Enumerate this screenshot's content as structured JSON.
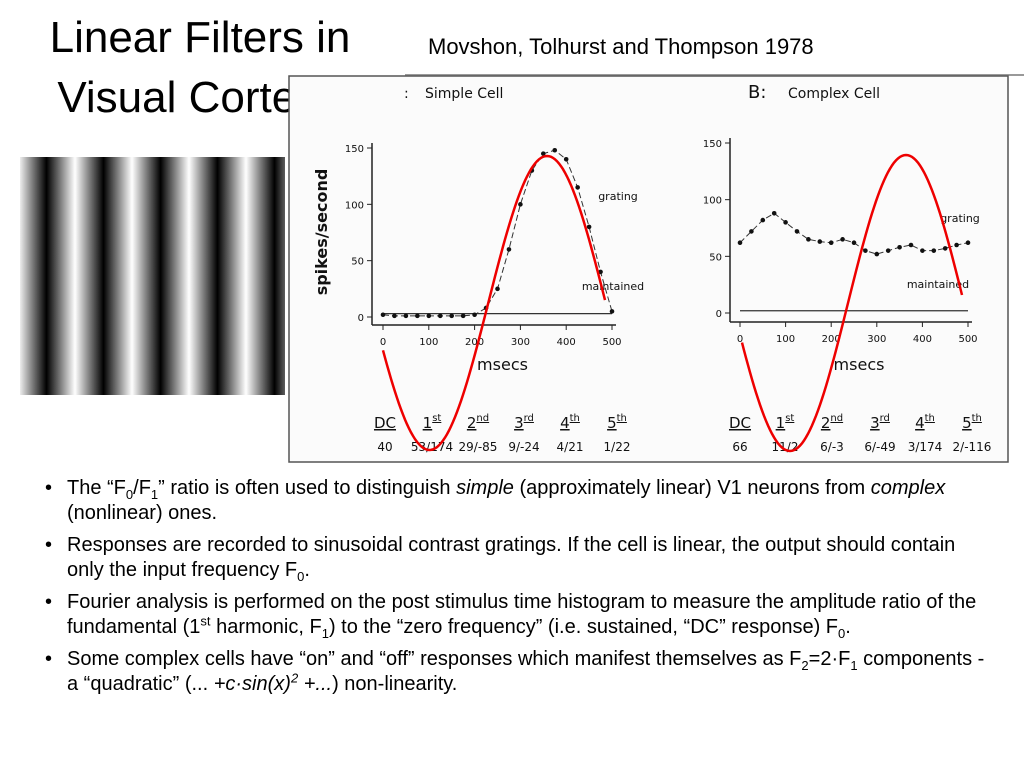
{
  "title": [
    "Linear Filters in",
    "Visual Cortex?"
  ],
  "citation": "Movshon, Tolhurst and Thompson 1978",
  "figure": {
    "y_axis_label": "spikes/second",
    "panels": [
      {
        "letter": null,
        "title": "Simple  Cell",
        "x_axis_label": "msecs",
        "grating_note": "grating",
        "maintained_note": "maintained",
        "xlim": [
          0,
          500
        ],
        "ylim": [
          0,
          150
        ],
        "xticks": [
          0,
          100,
          200,
          300,
          400,
          500
        ],
        "yticks": [
          0,
          50,
          100,
          150
        ],
        "time": [
          0,
          25,
          50,
          75,
          100,
          125,
          150,
          175,
          200,
          225,
          250,
          275,
          300,
          325,
          350,
          375,
          400,
          425,
          450,
          475,
          500
        ],
        "response": [
          2,
          1,
          1,
          1,
          1,
          1,
          1,
          1,
          2,
          8,
          25,
          60,
          100,
          130,
          145,
          148,
          140,
          115,
          80,
          40,
          5
        ],
        "maintained": 3,
        "harmonics": [
          {
            "label": "DC",
            "sup": null,
            "ratio": "40"
          },
          {
            "label": "1",
            "sup": "st",
            "ratio": "53/174"
          },
          {
            "label": "2",
            "sup": "nd",
            "ratio": "29/-85"
          },
          {
            "label": "3",
            "sup": "rd",
            "ratio": "9/-24"
          },
          {
            "label": "4",
            "sup": "th",
            "ratio": "4/21"
          },
          {
            "label": "5",
            "sup": "th",
            "ratio": "1/22"
          }
        ]
      },
      {
        "letter": "B:",
        "title": "Complex  Cell",
        "x_axis_label": "msecs",
        "grating_note": "grating",
        "maintained_note": "maintained",
        "xlim": [
          0,
          500
        ],
        "ylim": [
          0,
          150
        ],
        "xticks": [
          0,
          100,
          200,
          300,
          400,
          500
        ],
        "yticks": [
          0,
          50,
          100,
          150
        ],
        "time": [
          0,
          25,
          50,
          75,
          100,
          125,
          150,
          175,
          200,
          225,
          250,
          275,
          300,
          325,
          350,
          375,
          400,
          425,
          450,
          475,
          500
        ],
        "response": [
          62,
          72,
          82,
          88,
          80,
          72,
          65,
          63,
          62,
          65,
          62,
          55,
          52,
          55,
          58,
          60,
          55,
          55,
          57,
          60,
          62
        ],
        "maintained": 2,
        "harmonics": [
          {
            "label": "DC",
            "sup": null,
            "ratio": "66"
          },
          {
            "label": "1",
            "sup": "st",
            "ratio": "11/2"
          },
          {
            "label": "2",
            "sup": "nd",
            "ratio": "6/-3"
          },
          {
            "label": "3",
            "sup": "rd",
            "ratio": "6/-49"
          },
          {
            "label": "4",
            "sup": "th",
            "ratio": "3/174"
          },
          {
            "label": "5",
            "sup": "th",
            "ratio": "2/-116"
          }
        ]
      }
    ]
  },
  "bullets": [
    [
      {
        "text": "The “F"
      },
      {
        "sub": "0"
      },
      {
        "text": "/F"
      },
      {
        "sub": "1"
      },
      {
        "text": "” ratio is often used to distinguish "
      },
      {
        "i": "simple"
      },
      {
        "text": " (approximately linear) V1 neurons from "
      },
      {
        "i": "complex"
      },
      {
        "text": " (nonlinear) ones."
      }
    ],
    [
      {
        "text": "Responses are recorded to sinusoidal contrast gratings. If the cell is linear, the output should contain only the input frequency F"
      },
      {
        "sub": "0"
      },
      {
        "text": "."
      }
    ],
    [
      {
        "text": "Fourier analysis is performed on the post stimulus time histogram to measure the amplitude ratio of the fundamental (1"
      },
      {
        "sup": "st"
      },
      {
        "text": " harmonic, F"
      },
      {
        "sub": "1"
      },
      {
        "text": ") to the “zero frequency” (i.e. sustained, “DC” response) F"
      },
      {
        "sub": "0"
      },
      {
        "text": "."
      }
    ],
    [
      {
        "text": "Some complex cells have “on” and “off” responses which manifest themselves as F"
      },
      {
        "sub": "2"
      },
      {
        "text": "=2·F"
      },
      {
        "sub": "1"
      },
      {
        "text": " components - a “quadratic” (... "
      },
      {
        "i": "+c·sin(x)"
      },
      {
        "isup": "2"
      },
      {
        "i": " +..."
      },
      {
        "text": ") non-linearity."
      }
    ]
  ]
}
